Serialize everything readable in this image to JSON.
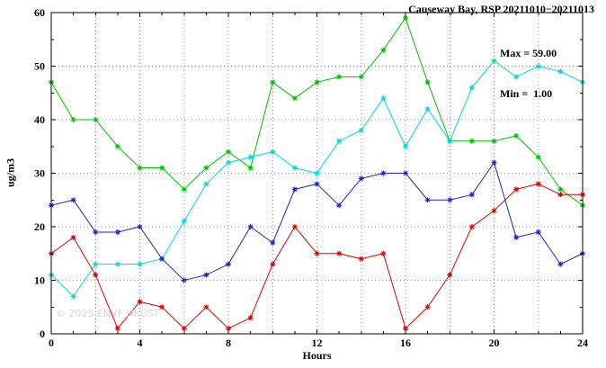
{
  "watermark": "© 2025 ENVF HKUST",
  "chart_data": {
    "type": "line",
    "title": "Causeway Bay, RSP 20211010−20211013",
    "xlabel": "Hours",
    "ylabel": "ug/m3",
    "xlim": [
      0,
      24
    ],
    "ylim": [
      0,
      60
    ],
    "xticks_major": [
      0,
      4,
      8,
      12,
      16,
      20,
      24
    ],
    "xticks_minor_step": 1,
    "yticks_major": [
      0,
      10,
      20,
      30,
      40,
      50,
      60
    ],
    "yticks_minor_step": 5,
    "grid": {
      "x_step": 2,
      "y_step": 10,
      "style": "dotted"
    },
    "legend": "none",
    "marker": "asterisk",
    "annotations": {
      "max": "Max = 59.00",
      "min": "Min =  1.00"
    },
    "x": [
      0,
      1,
      2,
      3,
      4,
      5,
      6,
      7,
      8,
      9,
      10,
      11,
      12,
      13,
      14,
      15,
      16,
      17,
      18,
      19,
      20,
      21,
      22,
      23,
      24
    ],
    "series": [
      {
        "name": "green",
        "color": "#00c000",
        "values": [
          47,
          40,
          40,
          35,
          31,
          31,
          27,
          31,
          34,
          31,
          47,
          44,
          47,
          48,
          48,
          53,
          59,
          47,
          36,
          36,
          36,
          37,
          33,
          27,
          24
        ]
      },
      {
        "name": "cyan",
        "color": "#00d8d8",
        "values": [
          11,
          7,
          13,
          13,
          13,
          14,
          21,
          28,
          32,
          33,
          34,
          31,
          30,
          36,
          38,
          44,
          35,
          42,
          36,
          46,
          51,
          48,
          50,
          49,
          47
        ]
      },
      {
        "name": "blue",
        "color": "#2020cc",
        "values": [
          24,
          25,
          19,
          19,
          20,
          14,
          10,
          11,
          13,
          20,
          17,
          27,
          28,
          24,
          29,
          30,
          30,
          25,
          25,
          26,
          32,
          18,
          19,
          13,
          15
        ]
      },
      {
        "name": "red",
        "color": "#dd0000",
        "values": [
          15,
          18,
          11,
          1,
          6,
          5,
          1,
          5,
          1,
          3,
          13,
          20,
          15,
          15,
          14,
          15,
          1,
          5,
          11,
          20,
          23,
          27,
          28,
          26,
          26
        ]
      }
    ]
  }
}
